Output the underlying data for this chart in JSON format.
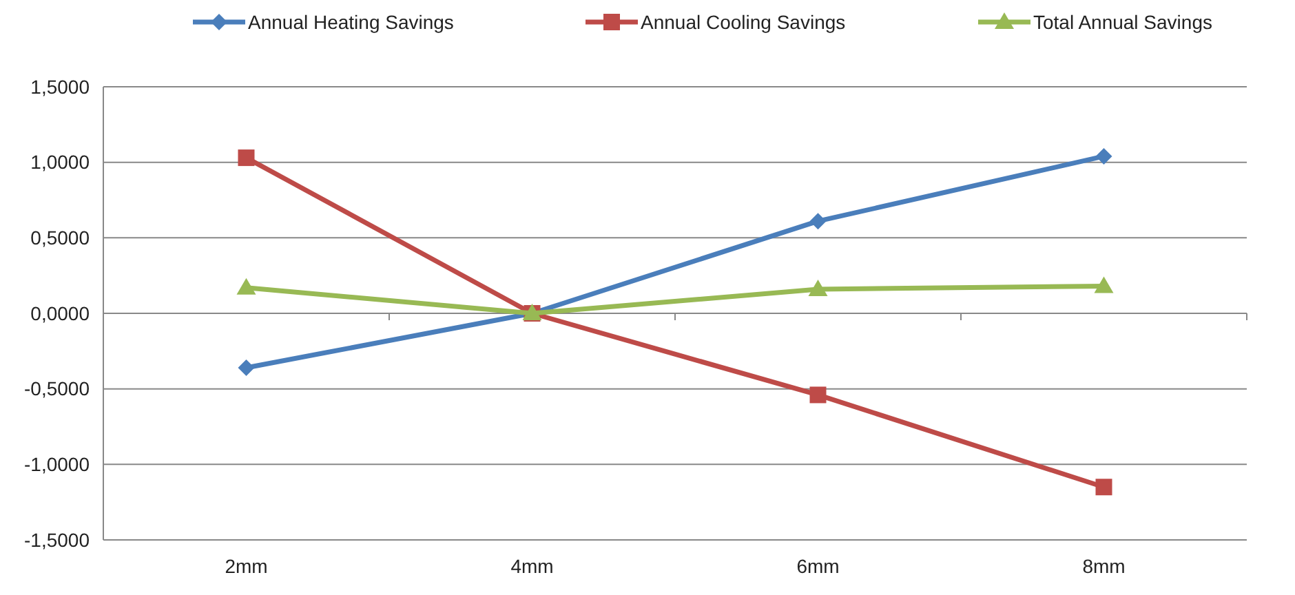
{
  "chart_data": {
    "type": "line",
    "categories": [
      "2mm",
      "4mm",
      "6mm",
      "8mm"
    ],
    "series": [
      {
        "name": "Annual Heating Savings",
        "color": "#4a7ebb",
        "marker": "diamond",
        "values": [
          -0.36,
          0,
          0.61,
          1.04
        ]
      },
      {
        "name": "Annual Cooling Savings",
        "color": "#be4b48",
        "marker": "square",
        "values": [
          1.03,
          0,
          -0.54,
          -1.15
        ]
      },
      {
        "name": "Total Annual Savings",
        "color": "#98b954",
        "marker": "triangle",
        "values": [
          0.17,
          0,
          0.16,
          0.18
        ]
      }
    ],
    "ylim": [
      -1.5,
      1.5
    ],
    "yticks": [
      {
        "value": -1.5,
        "label": "-1,5000"
      },
      {
        "value": -1,
        "label": "-1,0000"
      },
      {
        "value": -0.5,
        "label": "-0,5000"
      },
      {
        "value": 0,
        "label": "0,0000"
      },
      {
        "value": 0.5,
        "label": "0,5000"
      },
      {
        "value": 1,
        "label": "1,0000"
      },
      {
        "value": 1.5,
        "label": "1,5000"
      }
    ],
    "grid": "y",
    "legend": "top",
    "line_style": "solid"
  }
}
